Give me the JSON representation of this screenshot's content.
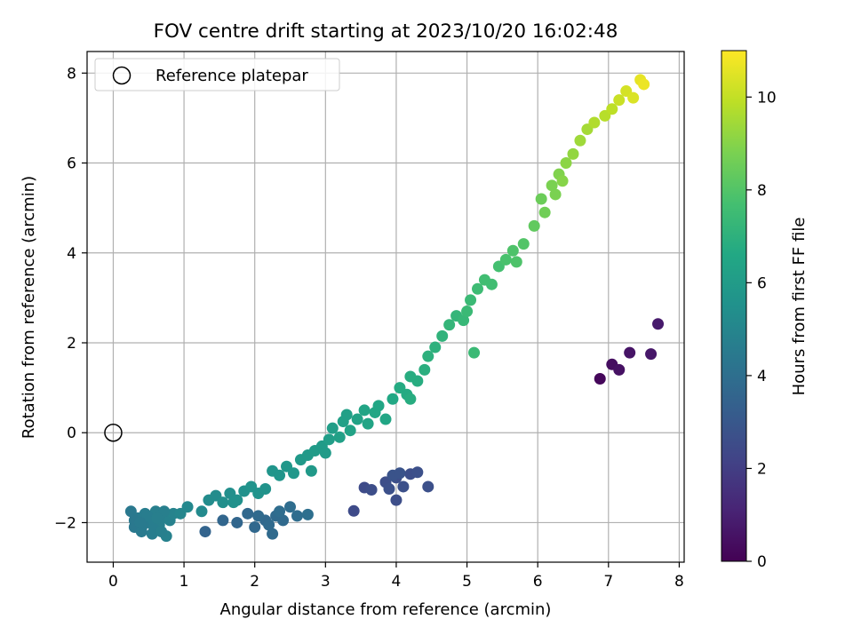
{
  "chart_data": {
    "type": "scatter",
    "title": "FOV centre drift starting at 2023/10/20 16:02:48",
    "xlabel": "Angular distance from reference (arcmin)",
    "ylabel": "Rotation from reference (arcmin)",
    "xlim": [
      -0.37,
      8.07
    ],
    "ylim": [
      -2.88,
      8.48
    ],
    "xticks": [
      0,
      1,
      2,
      3,
      4,
      5,
      6,
      7,
      8
    ],
    "yticks": [
      -2,
      0,
      2,
      4,
      6,
      8
    ],
    "grid": true,
    "legend": {
      "position": "top-left",
      "entries": [
        "Reference platepar"
      ]
    },
    "reference_point": {
      "x": 0,
      "y": 0,
      "marker": "open-circle",
      "label": "Reference platepar"
    },
    "colorbar": {
      "label": "Hours from first FF file",
      "colormap": "viridis",
      "range": [
        0,
        11
      ],
      "ticks": [
        0,
        2,
        4,
        6,
        8,
        10
      ]
    },
    "series": [
      {
        "columns": [
          "x",
          "y",
          "hours"
        ],
        "points": [
          [
            6.88,
            1.2,
            0.2
          ],
          [
            7.05,
            1.52,
            0.4
          ],
          [
            7.15,
            1.4,
            0.5
          ],
          [
            7.3,
            1.78,
            0.6
          ],
          [
            7.6,
            1.75,
            0.7
          ],
          [
            7.7,
            2.42,
            0.8
          ],
          [
            3.4,
            -1.74,
            2.5
          ],
          [
            3.55,
            -1.22,
            2.5
          ],
          [
            3.65,
            -1.27,
            2.6
          ],
          [
            3.85,
            -1.1,
            2.6
          ],
          [
            3.9,
            -1.25,
            2.7
          ],
          [
            4.0,
            -1.0,
            2.6
          ],
          [
            4.0,
            -1.5,
            2.6
          ],
          [
            4.1,
            -1.2,
            2.7
          ],
          [
            4.2,
            -0.92,
            2.6
          ],
          [
            4.3,
            -0.88,
            2.7
          ],
          [
            4.45,
            -1.2,
            2.7
          ],
          [
            3.95,
            -0.95,
            2.8
          ],
          [
            4.05,
            -0.9,
            2.8
          ],
          [
            1.3,
            -2.2,
            3.5
          ],
          [
            1.55,
            -1.95,
            3.6
          ],
          [
            1.75,
            -2.0,
            3.6
          ],
          [
            1.9,
            -1.8,
            3.7
          ],
          [
            2.0,
            -2.1,
            3.7
          ],
          [
            2.15,
            -1.95,
            3.7
          ],
          [
            2.25,
            -2.25,
            3.8
          ],
          [
            2.3,
            -1.85,
            3.8
          ],
          [
            2.4,
            -1.95,
            3.8
          ],
          [
            2.5,
            -1.65,
            3.9
          ],
          [
            2.6,
            -1.85,
            3.9
          ],
          [
            2.75,
            -1.82,
            4.0
          ],
          [
            2.05,
            -1.85,
            3.8
          ],
          [
            2.2,
            -2.05,
            3.8
          ],
          [
            2.35,
            -1.75,
            3.9
          ],
          [
            0.25,
            -1.75,
            4.4
          ],
          [
            0.3,
            -2.1,
            4.4
          ],
          [
            0.35,
            -1.9,
            4.5
          ],
          [
            0.4,
            -2.2,
            4.5
          ],
          [
            0.45,
            -1.8,
            4.6
          ],
          [
            0.5,
            -2.0,
            4.6
          ],
          [
            0.55,
            -2.25,
            4.6
          ],
          [
            0.6,
            -1.75,
            4.7
          ],
          [
            0.65,
            -2.05,
            4.7
          ],
          [
            0.7,
            -1.9,
            4.7
          ],
          [
            0.75,
            -2.3,
            4.8
          ],
          [
            0.8,
            -1.95,
            4.8
          ],
          [
            0.85,
            -1.8,
            4.9
          ],
          [
            0.3,
            -1.95,
            4.4
          ],
          [
            0.42,
            -2.05,
            4.5
          ],
          [
            0.58,
            -2.15,
            4.6
          ],
          [
            0.68,
            -2.2,
            4.7
          ],
          [
            0.72,
            -1.75,
            4.7
          ],
          [
            0.48,
            -1.85,
            4.6
          ],
          [
            0.38,
            -2.0,
            4.5
          ],
          [
            0.62,
            -1.9,
            4.7
          ],
          [
            0.95,
            -1.8,
            5.0
          ],
          [
            1.05,
            -1.65,
            5.1
          ],
          [
            1.25,
            -1.75,
            5.2
          ],
          [
            1.35,
            -1.5,
            5.3
          ],
          [
            1.45,
            -1.4,
            5.3
          ],
          [
            1.55,
            -1.55,
            5.4
          ],
          [
            1.65,
            -1.35,
            5.4
          ],
          [
            1.75,
            -1.5,
            5.5
          ],
          [
            1.85,
            -1.3,
            5.5
          ],
          [
            1.95,
            -1.2,
            5.6
          ],
          [
            2.05,
            -1.35,
            5.6
          ],
          [
            2.15,
            -1.25,
            5.6
          ],
          [
            1.7,
            -1.55,
            5.5
          ],
          [
            2.25,
            -0.85,
            5.7
          ],
          [
            2.35,
            -0.95,
            5.7
          ],
          [
            2.45,
            -0.75,
            5.8
          ],
          [
            2.55,
            -0.9,
            5.8
          ],
          [
            2.65,
            -0.6,
            5.9
          ],
          [
            2.75,
            -0.5,
            5.9
          ],
          [
            2.8,
            -0.85,
            5.9
          ],
          [
            2.85,
            -0.4,
            6.0
          ],
          [
            2.95,
            -0.3,
            6.0
          ],
          [
            3.05,
            -0.15,
            6.1
          ],
          [
            3.1,
            0.1,
            6.1
          ],
          [
            3.2,
            -0.1,
            6.2
          ],
          [
            3.25,
            0.25,
            6.2
          ],
          [
            3.35,
            0.05,
            6.3
          ],
          [
            3.45,
            0.3,
            6.3
          ],
          [
            3.55,
            0.5,
            6.4
          ],
          [
            3.6,
            0.2,
            6.4
          ],
          [
            3.7,
            0.45,
            6.5
          ],
          [
            3.75,
            0.6,
            6.5
          ],
          [
            3.85,
            0.3,
            6.5
          ],
          [
            3.95,
            0.75,
            6.6
          ],
          [
            4.05,
            1.0,
            6.7
          ],
          [
            4.15,
            0.85,
            6.7
          ],
          [
            4.2,
            1.25,
            6.8
          ],
          [
            4.3,
            1.15,
            6.8
          ],
          [
            4.4,
            1.4,
            6.9
          ],
          [
            4.2,
            0.75,
            6.8
          ],
          [
            3.0,
            -0.45,
            6.0
          ],
          [
            3.3,
            0.4,
            6.2
          ],
          [
            4.45,
            1.7,
            7.0
          ],
          [
            4.55,
            1.9,
            7.0
          ],
          [
            4.65,
            2.15,
            7.1
          ],
          [
            4.75,
            2.4,
            7.2
          ],
          [
            4.85,
            2.6,
            7.2
          ],
          [
            4.95,
            2.5,
            7.3
          ],
          [
            5.05,
            2.95,
            7.4
          ],
          [
            5.1,
            1.78,
            7.4
          ],
          [
            5.15,
            3.2,
            7.5
          ],
          [
            5.25,
            3.4,
            7.6
          ],
          [
            5.35,
            3.3,
            7.6
          ],
          [
            5.45,
            3.7,
            7.7
          ],
          [
            5.55,
            3.85,
            7.8
          ],
          [
            5.7,
            3.8,
            7.9
          ],
          [
            5.8,
            4.2,
            8.0
          ],
          [
            5.65,
            4.05,
            7.9
          ],
          [
            5.0,
            2.7,
            7.4
          ],
          [
            5.95,
            4.6,
            8.3
          ],
          [
            6.05,
            5.2,
            8.5
          ],
          [
            6.1,
            4.9,
            8.6
          ],
          [
            6.2,
            5.5,
            8.8
          ],
          [
            6.3,
            5.75,
            8.9
          ],
          [
            6.4,
            6.0,
            9.1
          ],
          [
            6.5,
            6.2,
            9.2
          ],
          [
            6.6,
            6.5,
            9.4
          ],
          [
            6.7,
            6.75,
            9.5
          ],
          [
            6.8,
            6.9,
            9.7
          ],
          [
            6.95,
            7.05,
            9.8
          ],
          [
            7.05,
            7.2,
            9.9
          ],
          [
            7.15,
            7.4,
            10.1
          ],
          [
            7.25,
            7.6,
            10.3
          ],
          [
            7.35,
            7.45,
            10.4
          ],
          [
            7.45,
            7.85,
            10.6
          ],
          [
            7.5,
            7.75,
            10.7
          ],
          [
            6.25,
            5.3,
            8.8
          ],
          [
            6.35,
            5.6,
            9.0
          ]
        ]
      }
    ]
  }
}
